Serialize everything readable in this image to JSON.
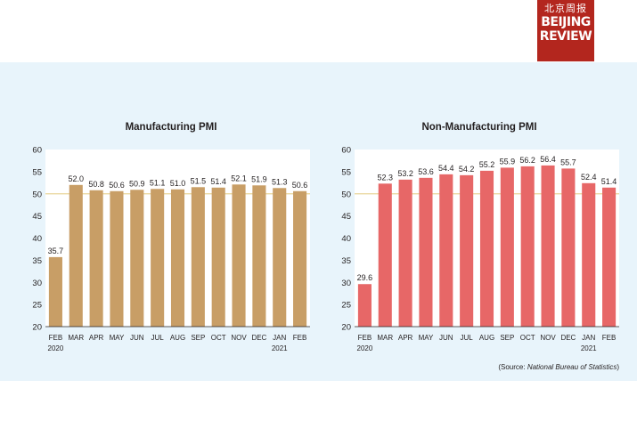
{
  "brand": {
    "cn": "北京周报",
    "line1": "BEIJING",
    "line2": "REVIEW"
  },
  "source": {
    "prefix": "(Source: ",
    "name": "National Bureau of Statistics",
    "suffix": ")"
  },
  "colors": {
    "background_band": "#e8f4fb",
    "plot_bg": "#ffffff",
    "manufacturing_bar": "#c89e66",
    "non_manufacturing_bar": "#e76767",
    "reference_line": "#e8d59a",
    "logo": "#b3261e"
  },
  "chart_data": [
    {
      "type": "bar",
      "title": "Manufacturing PMI",
      "categories": [
        "FEB",
        "MAR",
        "APR",
        "MAY",
        "JUN",
        "JUL",
        "AUG",
        "SEP",
        "OCT",
        "NOV",
        "DEC",
        "JAN",
        "FEB"
      ],
      "year_labels": [
        "2020",
        "",
        "",
        "",
        "",
        "",
        "",
        "",
        "",
        "",
        "",
        "2021",
        ""
      ],
      "values": [
        35.7,
        52.0,
        50.8,
        50.6,
        50.9,
        51.1,
        51.0,
        51.5,
        51.4,
        52.1,
        51.9,
        51.3,
        50.6
      ],
      "value_labels": [
        "35.7",
        "52.0",
        "50.8",
        "50.6",
        "50.9",
        "51.1",
        "51.0",
        "51.5",
        "51.4",
        "52.1",
        "51.9",
        "51.3",
        "50.6"
      ],
      "ylim": [
        20,
        60
      ],
      "yticks": [
        "20",
        "25",
        "30",
        "35",
        "40",
        "45",
        "50",
        "55",
        "60"
      ],
      "reference_line": 50,
      "grid": false,
      "color": "#c89e66"
    },
    {
      "type": "bar",
      "title": "Non-Manufacturing PMI",
      "categories": [
        "FEB",
        "MAR",
        "APR",
        "MAY",
        "JUN",
        "JUL",
        "AUG",
        "SEP",
        "OCT",
        "NOV",
        "DEC",
        "JAN",
        "FEB"
      ],
      "year_labels": [
        "2020",
        "",
        "",
        "",
        "",
        "",
        "",
        "",
        "",
        "",
        "",
        "2021",
        ""
      ],
      "values": [
        29.6,
        52.3,
        53.2,
        53.6,
        54.4,
        54.2,
        55.2,
        55.9,
        56.2,
        56.4,
        55.7,
        52.4,
        51.4
      ],
      "value_labels": [
        "29.6",
        "52.3",
        "53.2",
        "53.6",
        "54.4",
        "54.2",
        "55.2",
        "55.9",
        "56.2",
        "56.4",
        "55.7",
        "52.4",
        "51.4"
      ],
      "ylim": [
        20,
        60
      ],
      "yticks": [
        "20",
        "25",
        "30",
        "35",
        "40",
        "45",
        "50",
        "55",
        "60"
      ],
      "reference_line": 50,
      "grid": false,
      "color": "#e76767"
    }
  ]
}
